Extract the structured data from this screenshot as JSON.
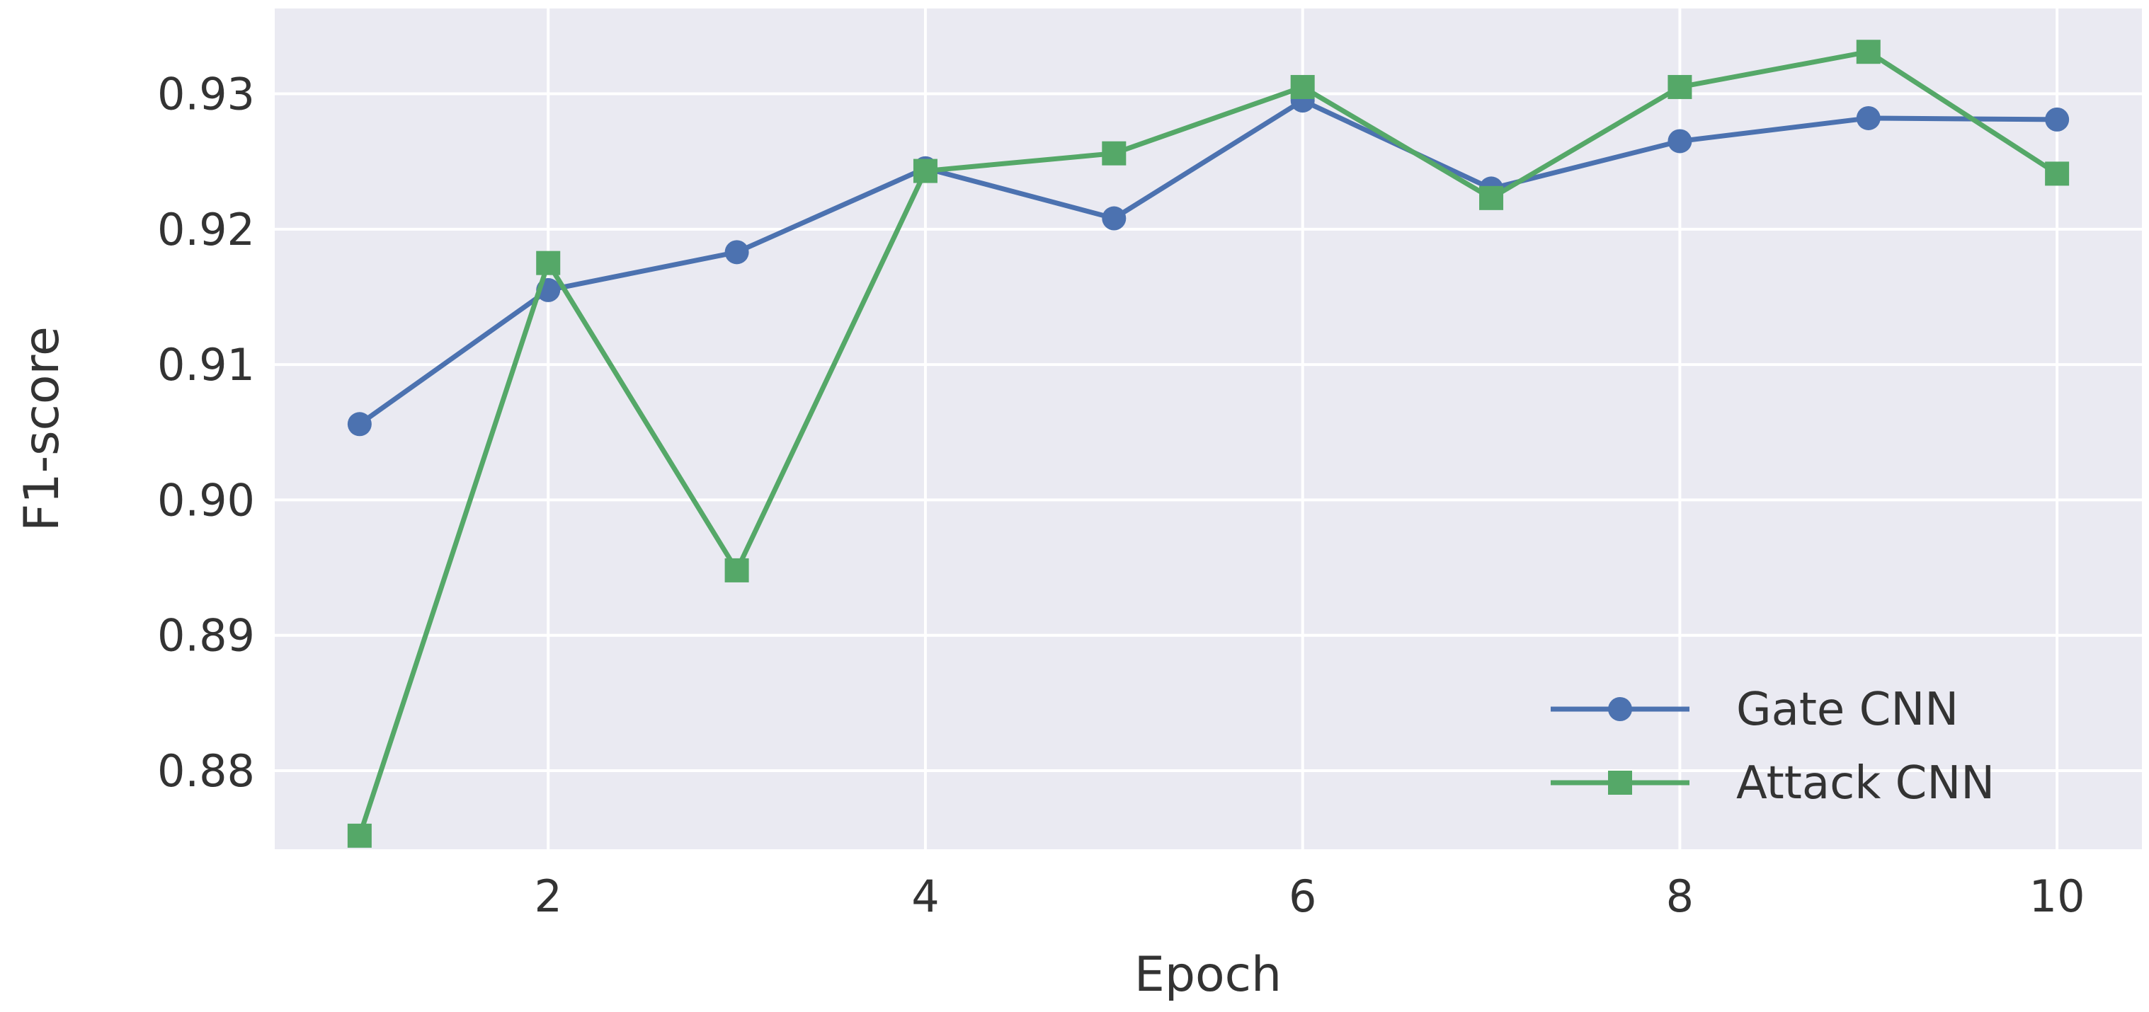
{
  "chart_data": {
    "type": "line",
    "xlabel": "Epoch",
    "ylabel": "F1-score",
    "x": [
      1,
      2,
      3,
      4,
      5,
      6,
      7,
      8,
      9,
      10
    ],
    "xticks": [
      2,
      4,
      6,
      8,
      10
    ],
    "xtick_labels": [
      "2",
      "4",
      "6",
      "8",
      "10"
    ],
    "xlim": [
      0.55,
      10.45
    ],
    "yticks": [
      0.88,
      0.89,
      0.9,
      0.91,
      0.92,
      0.93
    ],
    "ytick_labels": [
      "0.88",
      "0.89",
      "0.90",
      "0.91",
      "0.92",
      "0.93"
    ],
    "ylim": [
      0.8742,
      0.9363
    ],
    "grid": true,
    "legend_position": "lower-right",
    "series": [
      {
        "name": "Gate CNN",
        "color": "#4c72b0",
        "marker": "circle",
        "values": [
          0.9056,
          0.9155,
          0.9183,
          0.9245,
          0.9208,
          0.9295,
          0.923,
          0.9265,
          0.9282,
          0.9281
        ]
      },
      {
        "name": "Attack CNN",
        "color": "#55a868",
        "marker": "square",
        "values": [
          0.8752,
          0.9175,
          0.8948,
          0.9243,
          0.9256,
          0.9305,
          0.9223,
          0.9305,
          0.9331,
          0.9241
        ]
      }
    ]
  }
}
